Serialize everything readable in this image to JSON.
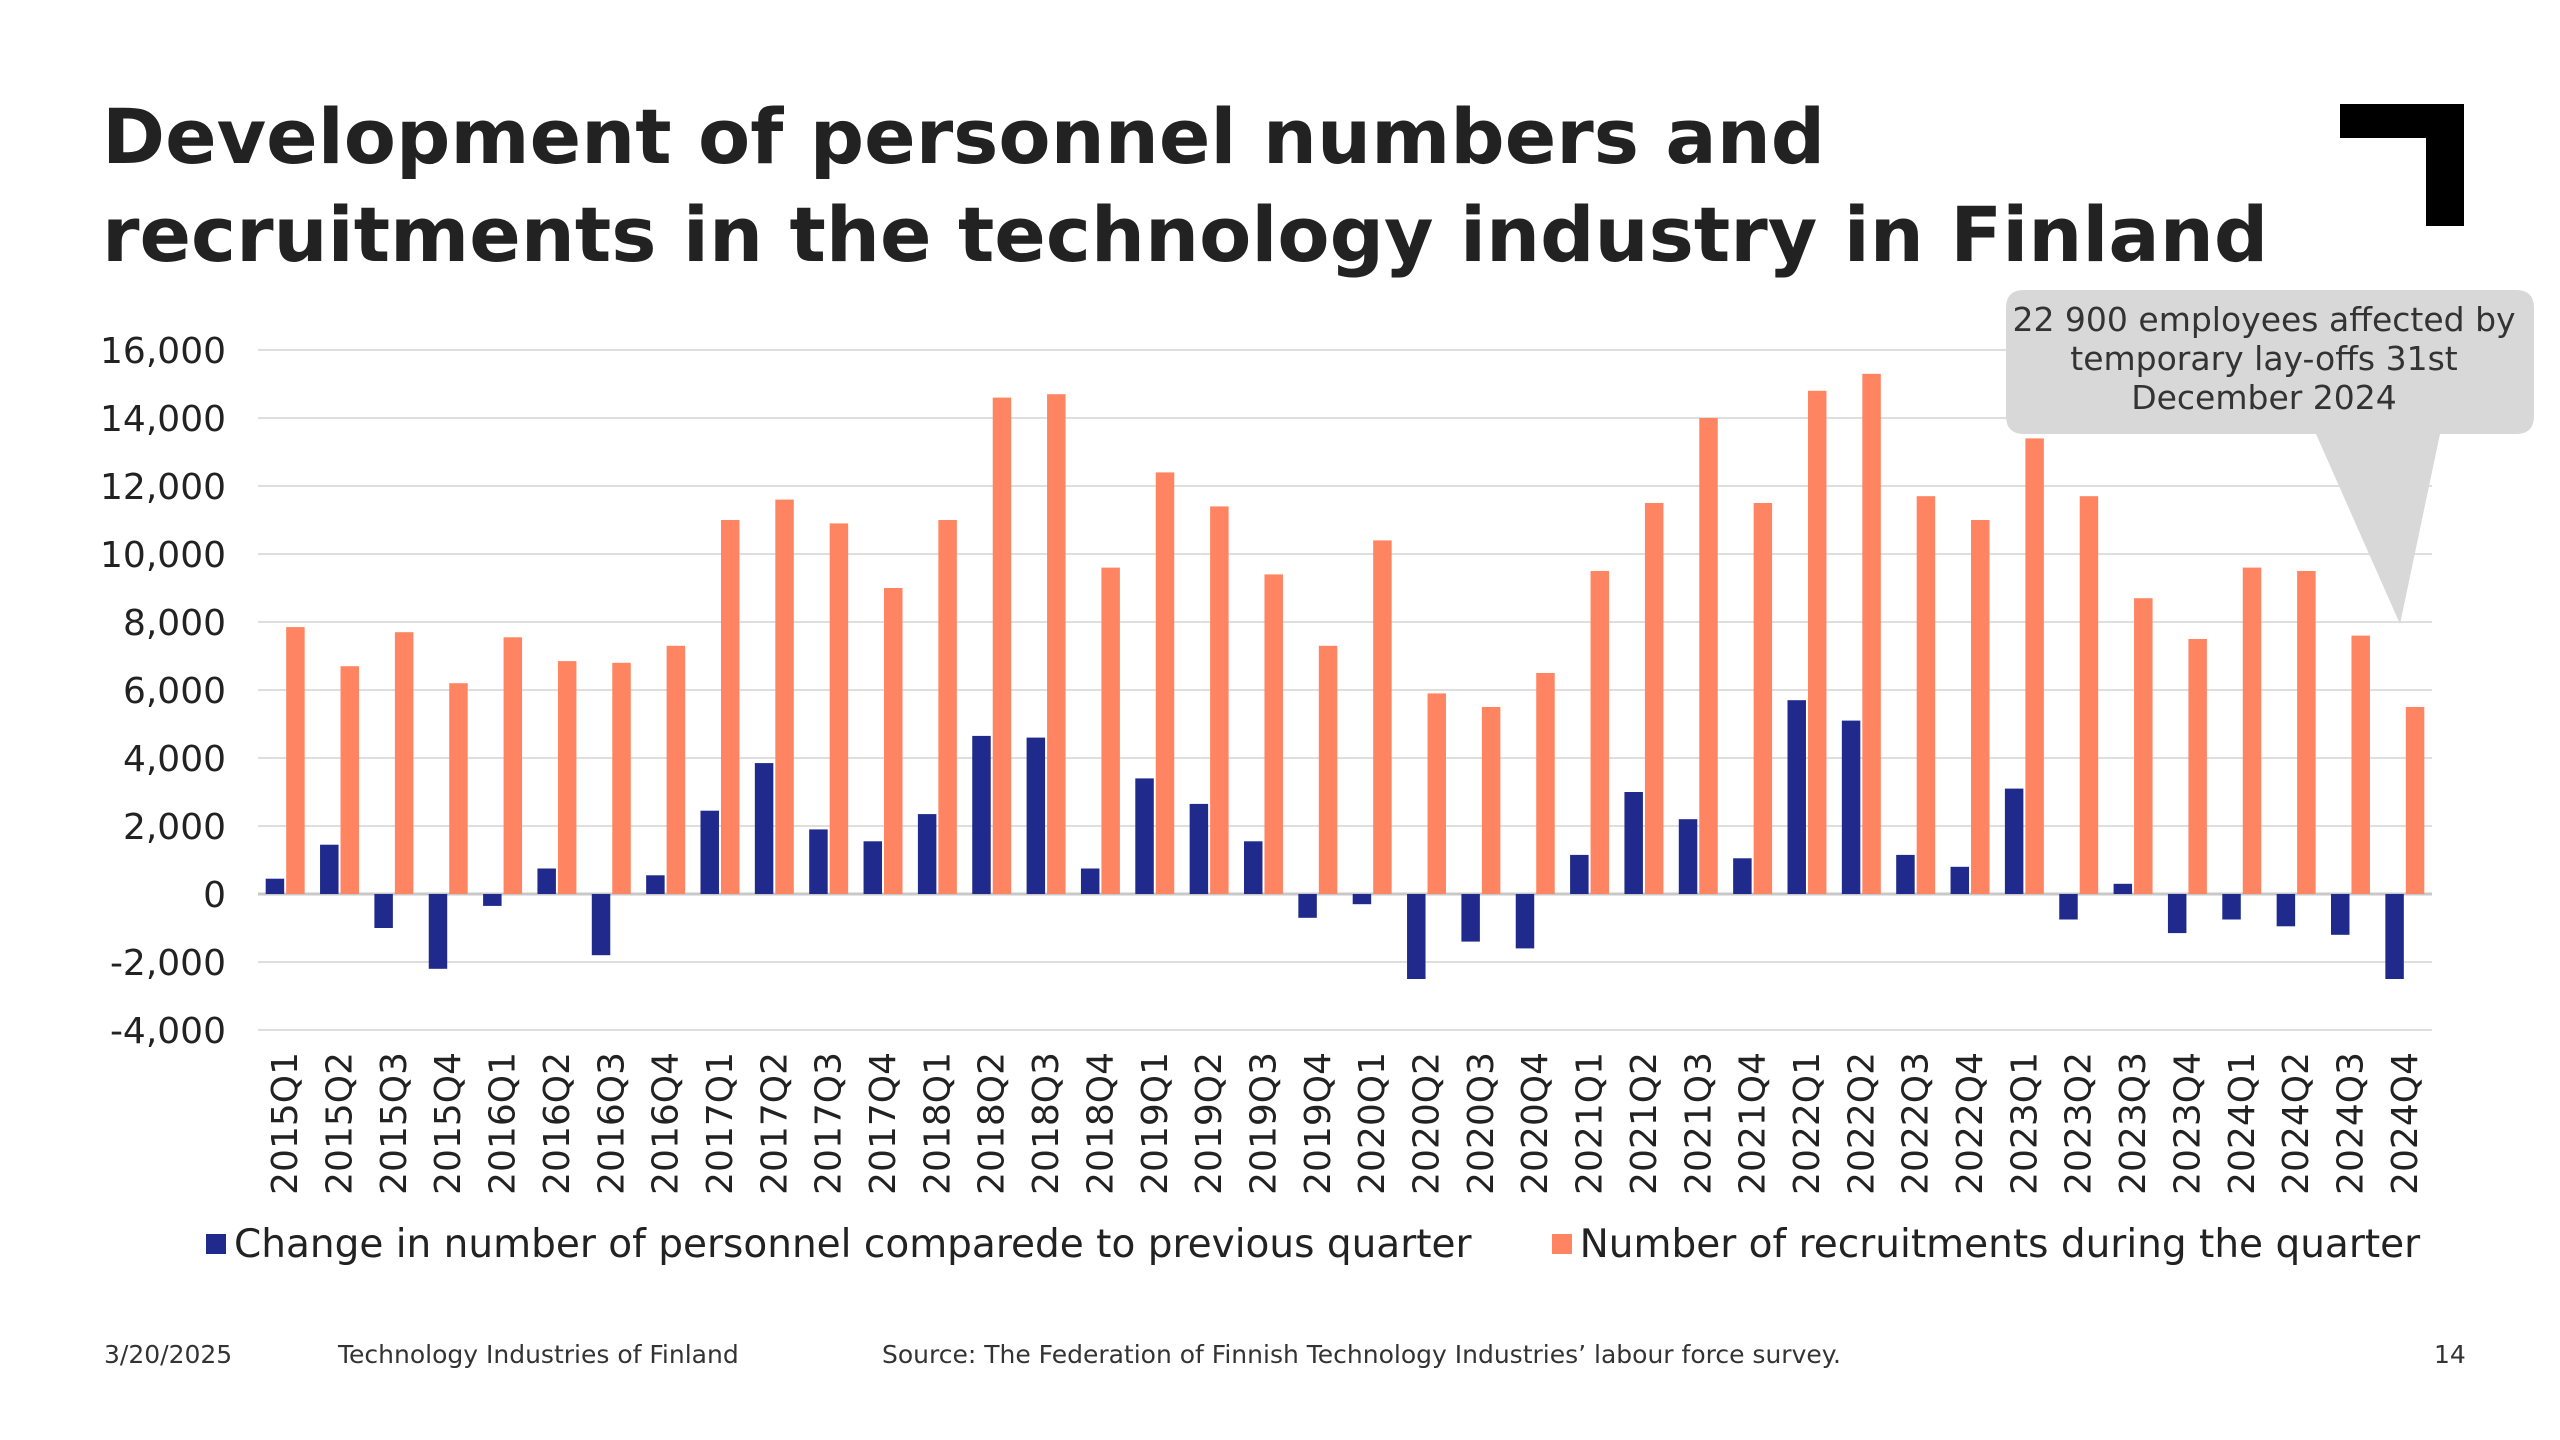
{
  "slide": {
    "title_line1": "Development of personnel numbers and",
    "title_line2": "recruitments in the technology industry in Finland",
    "callout": "22 900 employees affected by temporary lay-offs 31st December 2024",
    "footer_date": "3/20/2025",
    "footer_org": "Technology Industries of Finland",
    "footer_source": "Source: The Federation of Finnish Technology Industries’ labour force survey.",
    "page_number": "14"
  },
  "chart_data": {
    "type": "bar",
    "title": "Development of personnel numbers and recruitments in the technology industry in Finland",
    "xlabel": "",
    "ylabel": "",
    "ylim": [
      -4000,
      16000
    ],
    "yticks": [
      -4000,
      -2000,
      0,
      2000,
      4000,
      6000,
      8000,
      10000,
      12000,
      14000,
      16000
    ],
    "ytick_labels": [
      "-4,000",
      "-2,000",
      "0",
      "2,000",
      "4,000",
      "6,000",
      "8,000",
      "10,000",
      "12,000",
      "14,000",
      "16,000"
    ],
    "grid": true,
    "legend_position": "bottom",
    "categories": [
      "2015Q1",
      "2015Q2",
      "2015Q3",
      "2015Q4",
      "2016Q1",
      "2016Q2",
      "2016Q3",
      "2016Q4",
      "2017Q1",
      "2017Q2",
      "2017Q3",
      "2017Q4",
      "2018Q1",
      "2018Q2",
      "2018Q3",
      "2018Q4",
      "2019Q1",
      "2019Q2",
      "2019Q3",
      "2019Q4",
      "2020Q1",
      "2020Q2",
      "2020Q3",
      "2020Q4",
      "2021Q1",
      "2021Q2",
      "2021Q3",
      "2021Q4",
      "2022Q1",
      "2022Q2",
      "2022Q3",
      "2022Q4",
      "2023Q1",
      "2023Q2",
      "2023Q3",
      "2023Q4",
      "2024Q1",
      "2024Q2",
      "2024Q3",
      "2024Q4"
    ],
    "series": [
      {
        "name": "Change in number of personnel comparede to previous quarter",
        "color": "#1f2a8c",
        "values": [
          450,
          1450,
          -1000,
          -2200,
          -350,
          750,
          -1800,
          550,
          2450,
          3850,
          1900,
          1550,
          2350,
          4650,
          4600,
          750,
          3400,
          2650,
          1550,
          -700,
          -300,
          -2500,
          -1400,
          -1600,
          1150,
          3000,
          2200,
          1050,
          5700,
          5100,
          1150,
          800,
          3100,
          -750,
          300,
          -1150,
          -750,
          -950,
          -1200,
          -2500
        ]
      },
      {
        "name": "Number of recruitments during the quarter",
        "color": "#ff8461",
        "values": [
          7850,
          6700,
          7700,
          6200,
          7550,
          6850,
          6800,
          7300,
          11000,
          11600,
          10900,
          9000,
          11000,
          14600,
          14700,
          9600,
          12400,
          11400,
          9400,
          7300,
          10400,
          5900,
          5500,
          6500,
          9500,
          11500,
          14000,
          11500,
          14800,
          15300,
          11700,
          11000,
          13400,
          11700,
          8700,
          7500,
          9600,
          9500,
          7600,
          5500
        ]
      }
    ]
  }
}
